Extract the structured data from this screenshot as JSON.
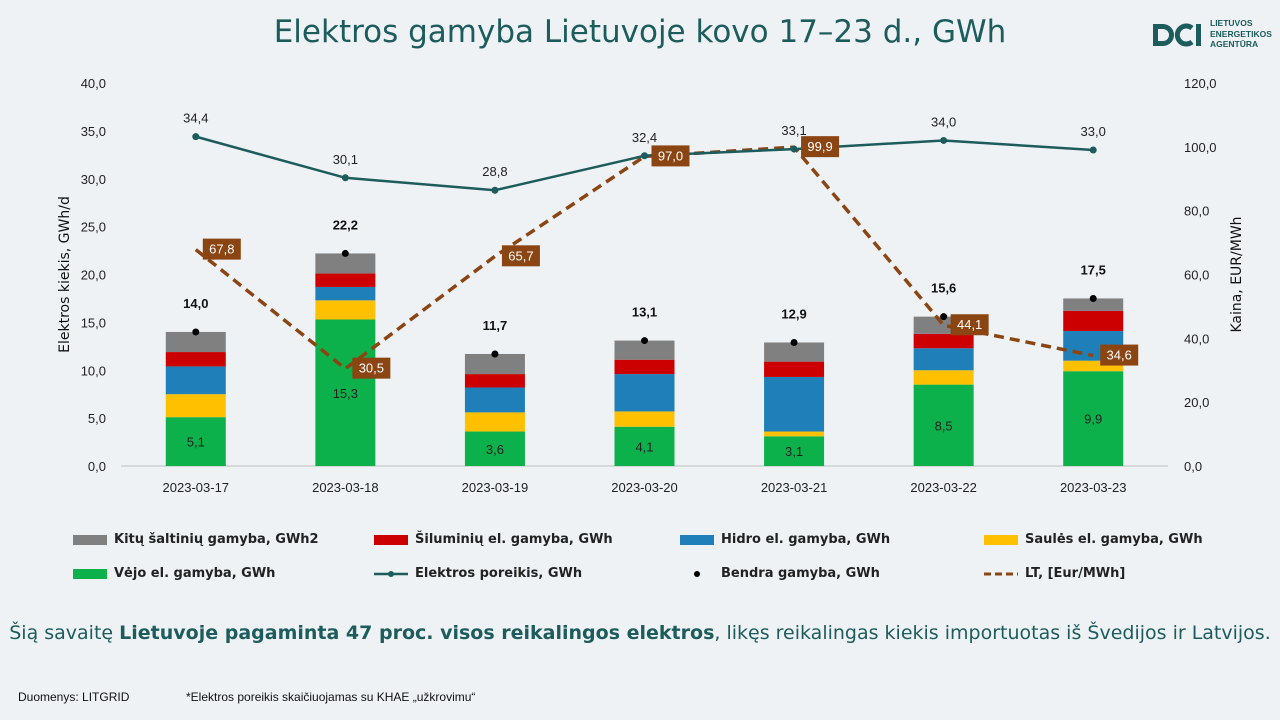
{
  "title": "Elektros gamyba Lietuvoje kovo 17–23 d., GWh",
  "logo": {
    "text": "LIETUVOS\nENERGETIKOS\nAGENTŪRA",
    "icon": "lea-logo-icon",
    "color": "#1d5c5c"
  },
  "chart_data": {
    "type": "bar",
    "stacked": true,
    "categories": [
      "2023-03-17",
      "2023-03-18",
      "2023-03-19",
      "2023-03-20",
      "2023-03-21",
      "2023-03-22",
      "2023-03-23"
    ],
    "ylabel": "Elektros kiekis, GWh/d",
    "y2label": "Kaina, EUR/MWh",
    "ylim": [
      0,
      40
    ],
    "y2lim": [
      0,
      120
    ],
    "yticks": [
      "0,0",
      "5,0",
      "10,0",
      "15,0",
      "20,0",
      "25,0",
      "30,0",
      "35,0",
      "40,0"
    ],
    "y2ticks": [
      "0,0",
      "20,0",
      "40,0",
      "60,0",
      "80,0",
      "100,0",
      "120,0"
    ],
    "grid": false,
    "legend_position": "bottom",
    "series": [
      {
        "name": "Vėjo el. gamyba, GWh",
        "color": "#0db14b",
        "values": [
          5.1,
          15.3,
          3.6,
          4.1,
          3.1,
          8.5,
          9.9
        ],
        "labels": [
          "5,1",
          "15,3",
          "3,6",
          "4,1",
          "3,1",
          "8,5",
          "9,9"
        ]
      },
      {
        "name": "Saulės el. gamyba, GWh",
        "color": "#ffc000",
        "values": [
          2.4,
          2.0,
          2.0,
          1.6,
          0.5,
          1.5,
          1.1
        ]
      },
      {
        "name": "Hidro el. gamyba, GWh",
        "color": "#1f7fb8",
        "values": [
          2.9,
          1.4,
          2.6,
          3.9,
          5.7,
          2.3,
          3.1
        ]
      },
      {
        "name": "Šiluminių el. gamyba, GWh",
        "color": "#cc0000",
        "values": [
          1.5,
          1.4,
          1.4,
          1.5,
          1.6,
          1.5,
          2.1
        ]
      },
      {
        "name": "Kitų šaltinių gamyba, GWh2",
        "color": "#808080",
        "values": [
          2.1,
          2.1,
          2.1,
          2.0,
          2.0,
          1.8,
          1.3
        ]
      }
    ],
    "total": {
      "name": "Bendra gamyba, GWh",
      "values": [
        14.0,
        22.2,
        11.7,
        13.1,
        12.9,
        15.6,
        17.5
      ],
      "labels": [
        "14,0",
        "22,2",
        "11,7",
        "13,1",
        "12,9",
        "15,6",
        "17,5"
      ]
    },
    "demand": {
      "name": "Elektros poreikis, GWh",
      "color": "#1d5c5c",
      "values": [
        34.4,
        30.1,
        28.8,
        32.4,
        33.1,
        34.0,
        33.0
      ],
      "labels": [
        "34,4",
        "30,1",
        "28,8",
        "32,4",
        "33,1",
        "34,0",
        "33,0"
      ]
    },
    "price": {
      "name": "LT, [Eur/MWh]",
      "color": "#8b4513",
      "axis": "right",
      "values": [
        67.8,
        30.5,
        65.7,
        97.0,
        99.9,
        44.1,
        34.6
      ],
      "labels": [
        "67,8",
        "30,5",
        "65,7",
        "97,0",
        "99,9",
        "44,1",
        "34,6"
      ]
    }
  },
  "legend_order": [
    "Kitų šaltinių gamyba, GWh2",
    "Šiluminių el. gamyba, GWh",
    "Hidro el. gamyba, GWh",
    "Saulės el. gamyba, GWh",
    "Vėjo el. gamyba, GWh",
    "Elektros poreikis, GWh",
    "Bendra gamyba, GWh",
    "LT, [Eur/MWh]"
  ],
  "summary": {
    "prefix": "Šią savaitę ",
    "bold": "Lietuvoje pagaminta 47 proc. visos reikalingos elektros",
    "suffix": ", likęs reikalingas kiekis importuotas iš Švedijos ir Latvijos."
  },
  "source": "Duomenys: LITGRID",
  "footnote": "*Elektros poreikis skaičiuojamas su KHAE „užkrovimu“"
}
